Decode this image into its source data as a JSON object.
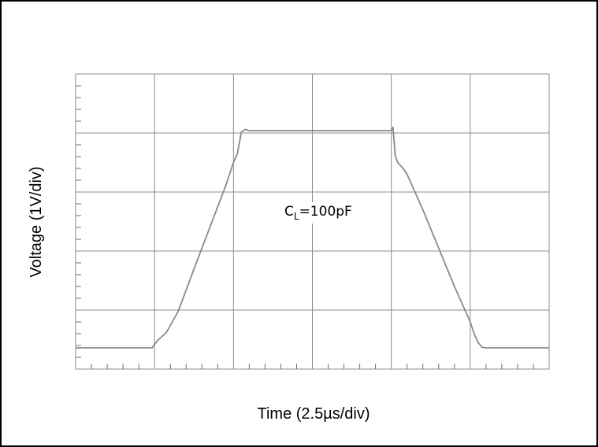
{
  "chart_data": {
    "type": "line",
    "xlabel": "Time (2.5µs/div)",
    "ylabel": "Voltage (1V/div)",
    "xlim": [
      0,
      6
    ],
    "ylim": [
      0,
      5
    ],
    "grid": true,
    "x_divisions": 6,
    "y_divisions": 5,
    "minor_ticks_per_division": 5,
    "annotation": {
      "main": "C",
      "subscript": "L",
      "rest": "=100pF"
    },
    "series": [
      {
        "color": "#8a8a8a",
        "x": [
          0.0,
          0.97,
          1.0,
          1.05,
          1.15,
          1.3,
          1.5,
          1.7,
          1.9,
          2.0,
          2.05,
          2.1,
          2.15,
          2.2,
          2.5,
          3.0,
          3.5,
          4.0,
          4.02,
          4.05,
          4.08,
          4.15,
          4.2,
          4.4,
          4.6,
          4.8,
          5.0,
          5.05,
          5.1,
          5.15,
          5.2,
          5.4,
          6.0
        ],
        "y": [
          0.36,
          0.36,
          0.42,
          0.5,
          0.62,
          0.98,
          1.7,
          2.4,
          3.1,
          3.5,
          3.65,
          4.02,
          4.06,
          4.04,
          4.04,
          4.04,
          4.04,
          4.04,
          4.1,
          3.62,
          3.5,
          3.4,
          3.3,
          2.7,
          2.05,
          1.4,
          0.8,
          0.6,
          0.45,
          0.37,
          0.36,
          0.36,
          0.36
        ]
      }
    ]
  }
}
